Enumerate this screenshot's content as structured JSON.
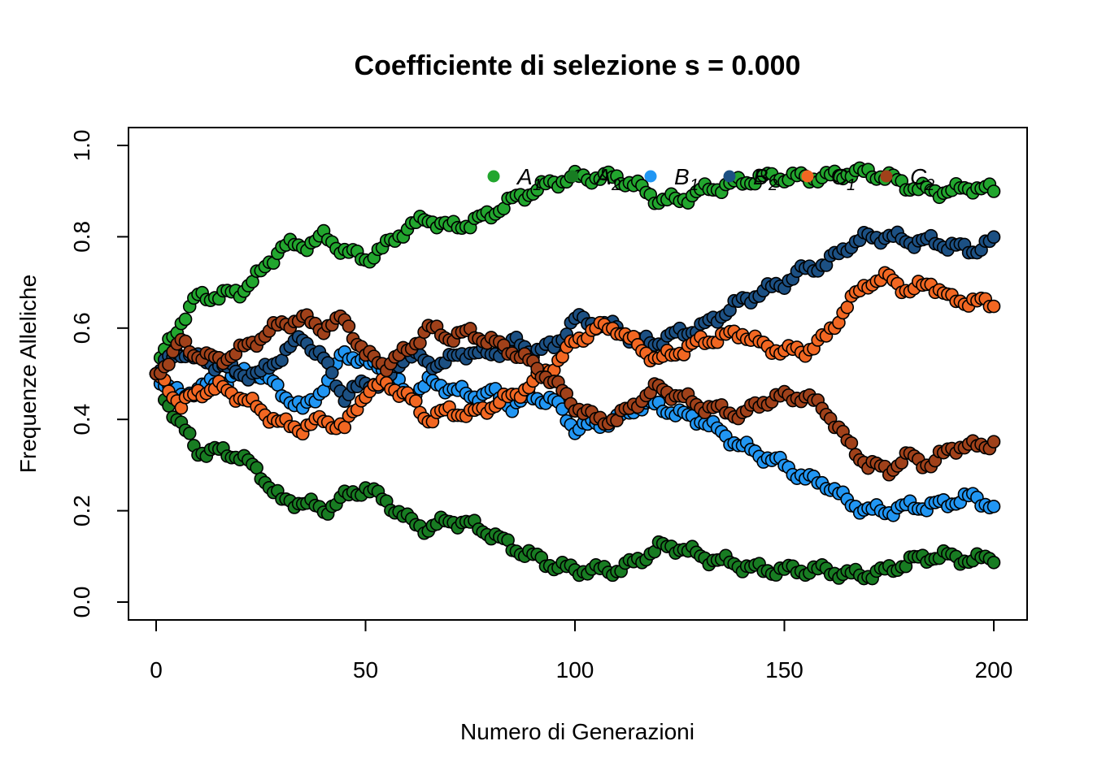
{
  "chart_data": {
    "type": "scatter",
    "title": "Coefficiente di selezione s = 0.000",
    "xlabel": "Numero di Generazioni",
    "ylabel": "Frequenze Alleliche",
    "xlim": [
      0,
      200
    ],
    "ylim": [
      0,
      1
    ],
    "xticks": [
      "0",
      "50",
      "100",
      "150",
      "200"
    ],
    "yticks": [
      "0.0",
      "0.2",
      "0.4",
      "0.6",
      "0.8",
      "1.0"
    ],
    "grid": false,
    "legend_position": "top-right",
    "series": [
      {
        "name": "A",
        "subscript": "1",
        "color": "#22a62e",
        "x": [
          0,
          2,
          5,
          10,
          15,
          20,
          25,
          30,
          35,
          40,
          45,
          50,
          55,
          60,
          65,
          70,
          75,
          80,
          85,
          90,
          95,
          100,
          105,
          110,
          115,
          120,
          125,
          130,
          135,
          140,
          145,
          150,
          155,
          160,
          165,
          170,
          175,
          180,
          185,
          190,
          195,
          200
        ],
        "y": [
          0.5,
          0.55,
          0.6,
          0.67,
          0.67,
          0.68,
          0.72,
          0.78,
          0.78,
          0.8,
          0.77,
          0.75,
          0.78,
          0.82,
          0.84,
          0.82,
          0.83,
          0.85,
          0.88,
          0.9,
          0.92,
          0.93,
          0.93,
          0.93,
          0.91,
          0.88,
          0.88,
          0.9,
          0.91,
          0.92,
          0.93,
          0.93,
          0.93,
          0.93,
          0.94,
          0.94,
          0.93,
          0.91,
          0.9,
          0.9,
          0.91,
          0.9
        ]
      },
      {
        "name": "A",
        "subscript": "2",
        "color": "#187c22",
        "x": [
          0,
          2,
          5,
          10,
          15,
          20,
          25,
          30,
          35,
          40,
          45,
          50,
          55,
          60,
          65,
          70,
          75,
          80,
          85,
          90,
          95,
          100,
          105,
          110,
          115,
          120,
          125,
          130,
          135,
          140,
          145,
          150,
          155,
          160,
          165,
          170,
          175,
          180,
          185,
          190,
          195,
          200
        ],
        "y": [
          0.5,
          0.45,
          0.4,
          0.33,
          0.33,
          0.32,
          0.28,
          0.22,
          0.22,
          0.2,
          0.23,
          0.25,
          0.22,
          0.18,
          0.16,
          0.18,
          0.17,
          0.15,
          0.12,
          0.1,
          0.08,
          0.07,
          0.07,
          0.07,
          0.09,
          0.12,
          0.12,
          0.1,
          0.09,
          0.08,
          0.07,
          0.07,
          0.07,
          0.07,
          0.06,
          0.06,
          0.07,
          0.09,
          0.1,
          0.1,
          0.09,
          0.1
        ]
      },
      {
        "name": "B",
        "subscript": "1",
        "color": "#2196f3",
        "x": [
          0,
          3,
          6,
          10,
          15,
          20,
          25,
          30,
          35,
          40,
          45,
          50,
          55,
          60,
          65,
          70,
          75,
          80,
          85,
          90,
          95,
          100,
          105,
          110,
          115,
          120,
          125,
          130,
          135,
          140,
          145,
          150,
          155,
          160,
          165,
          170,
          175,
          180,
          185,
          190,
          195,
          200
        ],
        "y": [
          0.5,
          0.47,
          0.45,
          0.47,
          0.48,
          0.5,
          0.5,
          0.46,
          0.42,
          0.47,
          0.55,
          0.52,
          0.52,
          0.45,
          0.48,
          0.47,
          0.45,
          0.46,
          0.43,
          0.45,
          0.44,
          0.38,
          0.39,
          0.4,
          0.43,
          0.43,
          0.41,
          0.4,
          0.37,
          0.34,
          0.32,
          0.3,
          0.27,
          0.26,
          0.22,
          0.2,
          0.2,
          0.21,
          0.21,
          0.22,
          0.23,
          0.21
        ]
      },
      {
        "name": "B",
        "subscript": "2",
        "color": "#1c5083",
        "x": [
          0,
          3,
          6,
          10,
          15,
          20,
          25,
          30,
          35,
          40,
          45,
          50,
          55,
          60,
          65,
          70,
          75,
          80,
          85,
          90,
          95,
          100,
          105,
          110,
          115,
          120,
          125,
          130,
          135,
          140,
          145,
          150,
          155,
          160,
          165,
          170,
          175,
          180,
          185,
          190,
          195,
          200
        ],
        "y": [
          0.5,
          0.53,
          0.55,
          0.53,
          0.52,
          0.5,
          0.5,
          0.54,
          0.58,
          0.53,
          0.45,
          0.48,
          0.48,
          0.55,
          0.52,
          0.53,
          0.55,
          0.54,
          0.57,
          0.55,
          0.56,
          0.62,
          0.61,
          0.6,
          0.57,
          0.57,
          0.59,
          0.6,
          0.63,
          0.66,
          0.68,
          0.7,
          0.73,
          0.74,
          0.78,
          0.8,
          0.8,
          0.79,
          0.79,
          0.78,
          0.77,
          0.79
        ]
      },
      {
        "name": "C",
        "subscript": "1",
        "color": "#f26722",
        "x": [
          0,
          3,
          6,
          10,
          15,
          20,
          25,
          30,
          35,
          40,
          45,
          50,
          55,
          60,
          65,
          70,
          75,
          80,
          85,
          90,
          95,
          100,
          105,
          110,
          115,
          120,
          125,
          130,
          135,
          140,
          145,
          150,
          155,
          160,
          165,
          170,
          175,
          180,
          185,
          190,
          195,
          200
        ],
        "y": [
          0.5,
          0.47,
          0.43,
          0.46,
          0.47,
          0.45,
          0.42,
          0.39,
          0.38,
          0.4,
          0.38,
          0.46,
          0.48,
          0.45,
          0.4,
          0.42,
          0.41,
          0.43,
          0.45,
          0.48,
          0.52,
          0.57,
          0.6,
          0.6,
          0.56,
          0.53,
          0.55,
          0.57,
          0.58,
          0.59,
          0.56,
          0.55,
          0.55,
          0.58,
          0.65,
          0.7,
          0.71,
          0.68,
          0.7,
          0.66,
          0.66,
          0.65
        ]
      },
      {
        "name": "C",
        "subscript": "2",
        "color": "#a0411a",
        "x": [
          0,
          3,
          6,
          10,
          15,
          20,
          25,
          30,
          35,
          40,
          45,
          50,
          55,
          60,
          65,
          70,
          75,
          80,
          85,
          90,
          95,
          100,
          105,
          110,
          115,
          120,
          125,
          130,
          135,
          140,
          145,
          150,
          155,
          160,
          165,
          170,
          175,
          180,
          185,
          190,
          195,
          200
        ],
        "y": [
          0.5,
          0.53,
          0.57,
          0.54,
          0.53,
          0.55,
          0.58,
          0.61,
          0.62,
          0.6,
          0.62,
          0.54,
          0.52,
          0.55,
          0.6,
          0.58,
          0.59,
          0.57,
          0.55,
          0.52,
          0.48,
          0.43,
          0.4,
          0.4,
          0.44,
          0.47,
          0.45,
          0.43,
          0.42,
          0.41,
          0.44,
          0.45,
          0.45,
          0.42,
          0.35,
          0.3,
          0.29,
          0.32,
          0.3,
          0.34,
          0.34,
          0.35
        ]
      }
    ]
  }
}
